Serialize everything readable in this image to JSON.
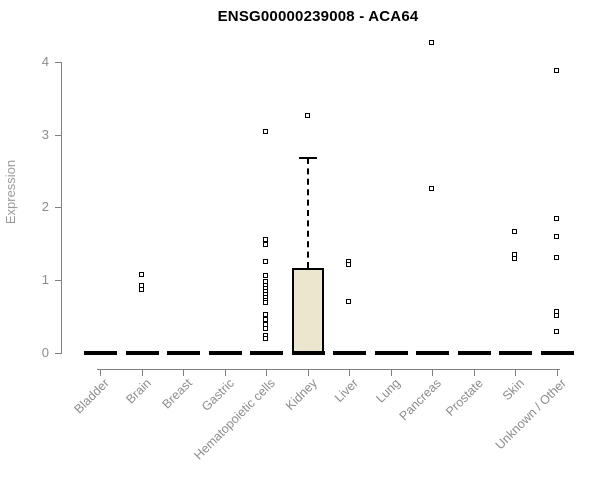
{
  "page": {
    "title": "ENSG00000239008 - ACA64"
  },
  "chart_data": {
    "type": "boxplot",
    "title": "ENSG00000239008 - ACA64",
    "xlabel": "",
    "ylabel": "Expression",
    "ylim": [
      0,
      4
    ],
    "yticks": [
      0,
      1,
      2,
      3,
      4
    ],
    "grid": false,
    "legend": "none",
    "colors": {
      "box_fill": "#EDE6CF",
      "box_border": "#000000",
      "median": "#000000",
      "outlier": "#000000",
      "axis": "#808080",
      "tick_text": "#8c8c8c",
      "axis_title_text": "#9a9a9a",
      "title_text": "#000000"
    },
    "categories": [
      "Bladder",
      "Brain",
      "Breast",
      "Gastric",
      "Hematopoietic cells",
      "Kidney",
      "Liver",
      "Lung",
      "Pancreas",
      "Prostate",
      "Skin",
      "Unknown / Other"
    ],
    "series": [
      {
        "name": "Bladder",
        "q1": 0,
        "median": 0,
        "q3": 0,
        "whisker_low": 0,
        "whisker_high": 0,
        "outliers": []
      },
      {
        "name": "Brain",
        "q1": 0,
        "median": 0,
        "q3": 0,
        "whisker_low": 0,
        "whisker_high": 0,
        "outliers": [
          1.07,
          0.92,
          0.87
        ]
      },
      {
        "name": "Breast",
        "q1": 0,
        "median": 0,
        "q3": 0,
        "whisker_low": 0,
        "whisker_high": 0,
        "outliers": []
      },
      {
        "name": "Gastric",
        "q1": 0,
        "median": 0,
        "q3": 0,
        "whisker_low": 0,
        "whisker_high": 0,
        "outliers": []
      },
      {
        "name": "Hematopoietic cells",
        "q1": 0,
        "median": 0,
        "q3": 0,
        "whisker_low": 0,
        "whisker_high": 0,
        "outliers": [
          3.03,
          1.55,
          1.48,
          1.25,
          1.06,
          0.97,
          0.92,
          0.88,
          0.84,
          0.8,
          0.76,
          0.72,
          0.68,
          0.52,
          0.45,
          0.38,
          0.33,
          0.24,
          0.19
        ]
      },
      {
        "name": "Kidney",
        "q1": 0,
        "median": 0,
        "q3": 1.17,
        "whisker_low": 0,
        "whisker_high": 2.68,
        "outliers": [
          3.25
        ]
      },
      {
        "name": "Liver",
        "q1": 0,
        "median": 0,
        "q3": 0,
        "whisker_low": 0,
        "whisker_high": 0,
        "outliers": [
          1.25,
          1.21,
          0.7
        ]
      },
      {
        "name": "Lung",
        "q1": 0,
        "median": 0,
        "q3": 0,
        "whisker_low": 0,
        "whisker_high": 0,
        "outliers": []
      },
      {
        "name": "Pancreas",
        "q1": 0,
        "median": 0,
        "q3": 0,
        "whisker_low": 0,
        "whisker_high": 0,
        "outliers": [
          4.26,
          2.25
        ]
      },
      {
        "name": "Prostate",
        "q1": 0,
        "median": 0,
        "q3": 0,
        "whisker_low": 0,
        "whisker_high": 0,
        "outliers": []
      },
      {
        "name": "Skin",
        "q1": 0,
        "median": 0,
        "q3": 0,
        "whisker_low": 0,
        "whisker_high": 0,
        "outliers": [
          1.66,
          1.35,
          1.29
        ]
      },
      {
        "name": "Unknown / Other",
        "q1": 0,
        "median": 0,
        "q3": 0,
        "whisker_low": 0,
        "whisker_high": 0,
        "outliers": [
          3.87,
          1.84,
          1.6,
          1.31,
          0.57,
          0.51,
          0.29
        ]
      }
    ]
  }
}
